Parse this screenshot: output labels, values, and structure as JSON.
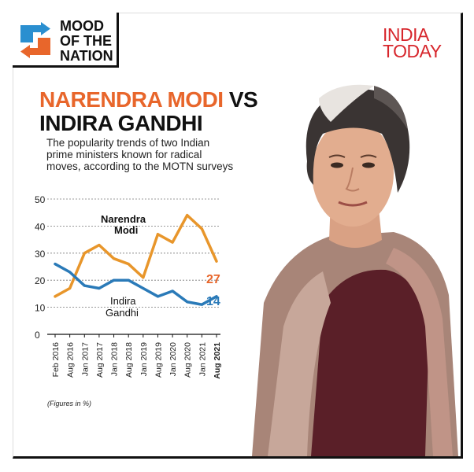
{
  "logo": {
    "text_line1": "MOOD",
    "text_line2": "OF THE",
    "text_line3": "NATION"
  },
  "brand": {
    "line1": "INDIA",
    "line2": "TODAY"
  },
  "heading": {
    "part1": "NARENDRA MODI",
    "part2": "VS",
    "line2": "INDIRA GANDHI"
  },
  "subtitle": "The popularity trends of two Indian prime ministers known for radical moves, according to the MOTN surveys",
  "footnote": "(Figures in %)",
  "colors": {
    "modi": "#e8962b",
    "modi_label": "#e8662b",
    "indira": "#2a7ab8",
    "brand": "#d7262c"
  },
  "chart_data": {
    "type": "line",
    "categories": [
      "Feb 2016",
      "Aug 2016",
      "Jan 2017",
      "Aug 2017",
      "Jan 2018",
      "Aug 2018",
      "Jan 2019",
      "Aug 2019",
      "Jan 2020",
      "Aug 2020",
      "Jan 2021",
      "Aug 2021"
    ],
    "series": [
      {
        "name": "Narendra Modi",
        "values": [
          14,
          17,
          30,
          33,
          28,
          26,
          21,
          37,
          34,
          44,
          39,
          27
        ],
        "end_label": "27",
        "label_line1": "Narendra",
        "label_line2": "Modi"
      },
      {
        "name": "Indira Gandhi",
        "values": [
          26,
          23,
          18,
          17,
          20,
          20,
          17,
          14,
          16,
          12,
          11,
          14
        ],
        "end_label": "14",
        "label_line1": "Indira",
        "label_line2": "Gandhi"
      }
    ],
    "y_ticks": [
      "0",
      "10",
      "20",
      "30",
      "40",
      "50"
    ],
    "ylim": [
      0,
      50
    ],
    "grid": true,
    "xlabel": "",
    "ylabel": ""
  }
}
